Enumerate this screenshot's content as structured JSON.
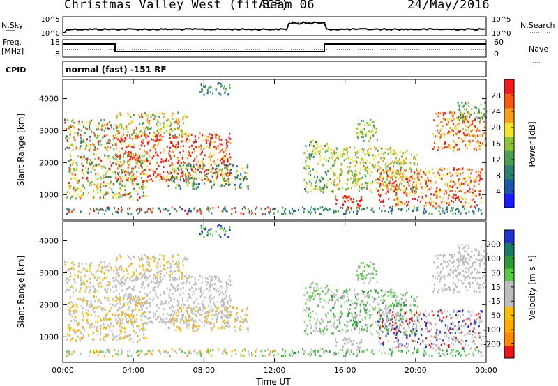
{
  "header": {
    "title": "Christmas Valley West (fitACF)",
    "beam": "Beam 06",
    "date": "24/May/2016"
  },
  "top_panels": {
    "nsky_label": "N.Sky",
    "nsearch_label": "N.Search",
    "log_ticks": [
      "10^5",
      "10^0"
    ],
    "freq_label": "Freq.",
    "freq_unit": "[MHz]",
    "freq_ticks": [
      "18",
      "8"
    ],
    "nave_label": "Nave",
    "nave_ticks": [
      "60",
      "0"
    ],
    "cpid_label": "CPID",
    "cpid_text": "normal (fast) -151 RF"
  },
  "colors": {
    "power_scale": [
      "#1a1aff",
      "#1e56a8",
      "#2f7f6f",
      "#4f9e55",
      "#8bc43a",
      "#f2e52b",
      "#f7a11a",
      "#f45a14",
      "#ee1c1c"
    ],
    "velocity_scale": [
      "#e81717",
      "#ff8800",
      "#ffaa00",
      "#f5c000",
      "#bdbdbd",
      "#bdbdbd",
      "#55cc44",
      "#2e9a3a",
      "#1a7a6a",
      "#2233cc"
    ]
  },
  "chart_data": [
    {
      "type": "heatmap",
      "name": "power",
      "ylabel": "Slant Range [km]",
      "yticks": [
        1000,
        2000,
        3000,
        4000
      ],
      "ylim": [
        200,
        4600
      ],
      "xticks": [
        "00:00",
        "04:00",
        "08:00",
        "12:00",
        "16:00",
        "20:00",
        "00:00"
      ],
      "colorbar_label": "Power [dB]",
      "colorbar_ticks": [
        "4",
        "8",
        "12",
        "16",
        "20",
        "24",
        "28"
      ]
    },
    {
      "type": "heatmap",
      "name": "velocity",
      "ylabel": "Slant Range [km]",
      "yticks": [
        1000,
        2000,
        3000,
        4000
      ],
      "ylim": [
        200,
        4600
      ],
      "xticks": [
        "00:00",
        "04:00",
        "08:00",
        "12:00",
        "16:00",
        "20:00",
        "00:00"
      ],
      "xlabel": "Time UT",
      "colorbar_label": "Velocity [m s⁻¹]",
      "colorbar_ticks": [
        "200",
        "100",
        "50",
        "15",
        "-15",
        "-50",
        "-100",
        "-200"
      ]
    }
  ]
}
